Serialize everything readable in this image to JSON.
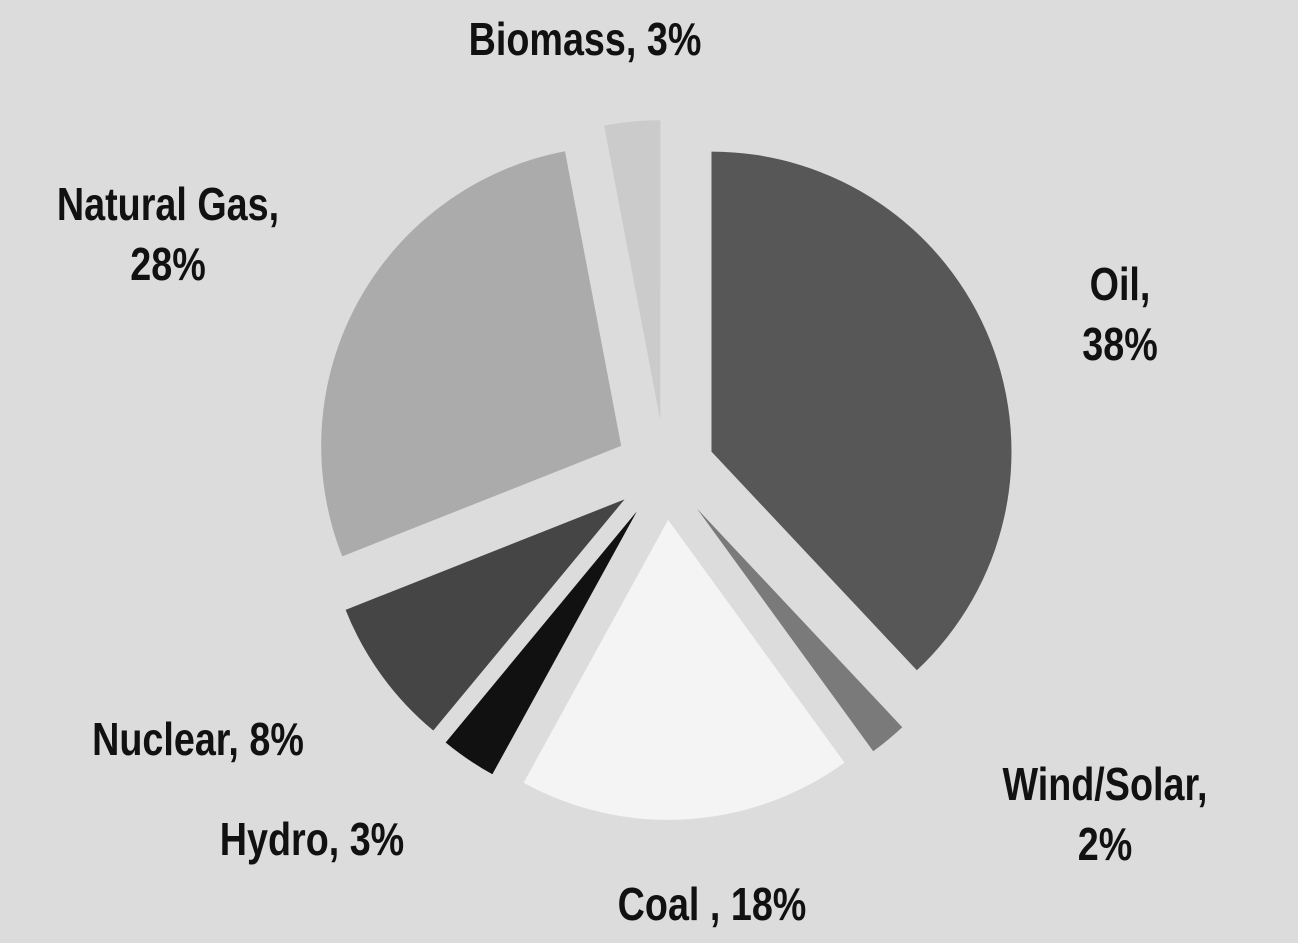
{
  "chart_data": {
    "type": "pie",
    "labels": [
      "Oil, 38%",
      "Wind/Solar, 2%",
      "Coal , 18%",
      "Hydro, 3%",
      "Nuclear, 8%",
      "Natural Gas,\n28%",
      "Biomass, 3%"
    ],
    "values": [
      38,
      2,
      18,
      3,
      8,
      28,
      3
    ],
    "colors": [
      "#575757",
      "#7a7a7a",
      "#f4f4f4",
      "#111111",
      "#454545",
      "#ababab",
      "#cbcbcb"
    ]
  }
}
